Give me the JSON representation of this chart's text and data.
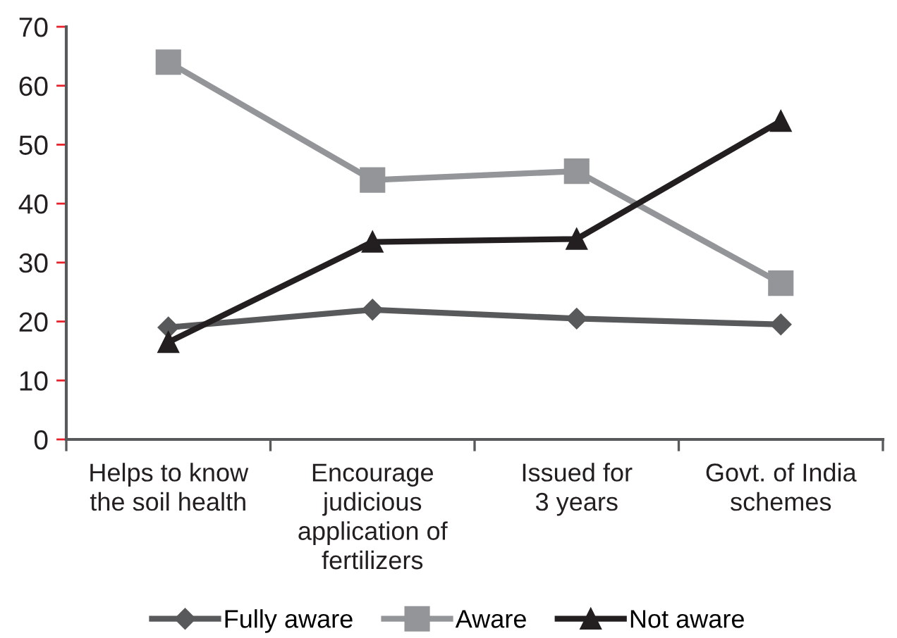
{
  "chart_data": {
    "type": "line",
    "categories": [
      "Helps to know\nthe soil health",
      "Encourage\njudicious\napplication of\nfertilizers",
      "Issued for\n3 years",
      "Govt. of India\nschemes"
    ],
    "series": [
      {
        "name": "Fully aware",
        "color": "#58595b",
        "marker": "diamond",
        "values": [
          19,
          22,
          20.5,
          19.5
        ]
      },
      {
        "name": "Aware",
        "color": "#939598",
        "marker": "square",
        "values": [
          64,
          44,
          45.5,
          26.5
        ]
      },
      {
        "name": "Not aware",
        "color": "#231f20",
        "marker": "triangle",
        "values": [
          16.5,
          33.5,
          34,
          54
        ]
      }
    ],
    "ylim": [
      0,
      70
    ],
    "yticks": [
      0,
      10,
      20,
      30,
      40,
      50,
      60,
      70
    ],
    "grid": false,
    "legend": "bottom",
    "line_style": "solid"
  }
}
